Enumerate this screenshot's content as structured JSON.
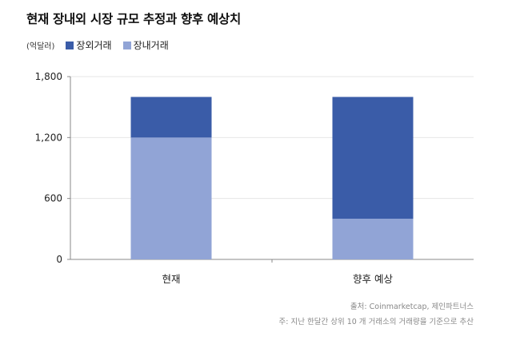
{
  "title": "현재 장내외 시장 규모 추정과 향후 예상치",
  "legend": {
    "unit": "(억달러)",
    "items": [
      {
        "label": "장외거래",
        "color": "#3a5ca8"
      },
      {
        "label": "장내거래",
        "color": "#91a4d6"
      }
    ]
  },
  "source_line": "출처: Coinmarketcap, 제인파트너스",
  "note_line": "주: 지난 한달간 상위 10 개 거래소의 거래량을 기준으로 추산",
  "chart_data": {
    "type": "bar",
    "stacked": true,
    "categories": [
      "현재",
      "향후 예상"
    ],
    "series": [
      {
        "name": "장내거래",
        "values": [
          1200,
          400
        ],
        "color": "#91a4d6"
      },
      {
        "name": "장외거래",
        "values": [
          400,
          1200
        ],
        "color": "#3a5ca8"
      }
    ],
    "ylim": [
      0,
      1800
    ],
    "yticks": [
      0,
      600,
      1200,
      1800
    ],
    "ytick_labels": [
      "0",
      "600",
      "1,200",
      "1,800"
    ],
    "grid": true,
    "legend_position": "top-left"
  }
}
